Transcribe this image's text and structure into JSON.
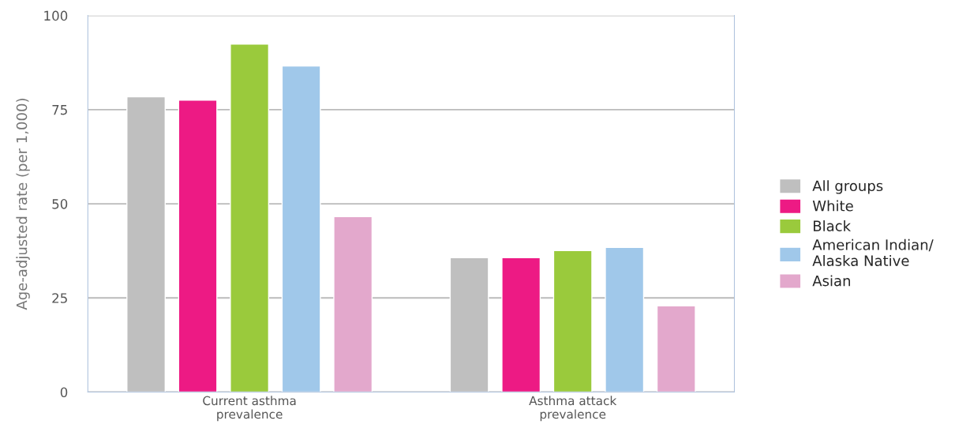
{
  "chart_data": {
    "type": "bar",
    "ylabel": "Age-adjusted rate (per 1,000)",
    "categories": [
      "Current asthma\nprevalence",
      "Asthma attack\nprevalence"
    ],
    "series": [
      {
        "name": "All groups",
        "color": "#bfbfbf",
        "values": [
          78.4,
          35.7
        ]
      },
      {
        "name": "White",
        "color": "#ed1a84",
        "values": [
          77.5,
          35.7
        ]
      },
      {
        "name": "Black",
        "color": "#9aca3c",
        "values": [
          92.4,
          37.6
        ]
      },
      {
        "name": "American Indian/\nAlaska Native",
        "color": "#a0c8ea",
        "values": [
          86.6,
          38.4
        ]
      },
      {
        "name": "Asian",
        "color": "#e3a8cc",
        "values": [
          46.6,
          22.9
        ]
      }
    ],
    "ylim": [
      0,
      100
    ],
    "yticks": [
      0,
      25,
      50,
      75,
      100
    ],
    "grid": "y",
    "legend": "right"
  }
}
